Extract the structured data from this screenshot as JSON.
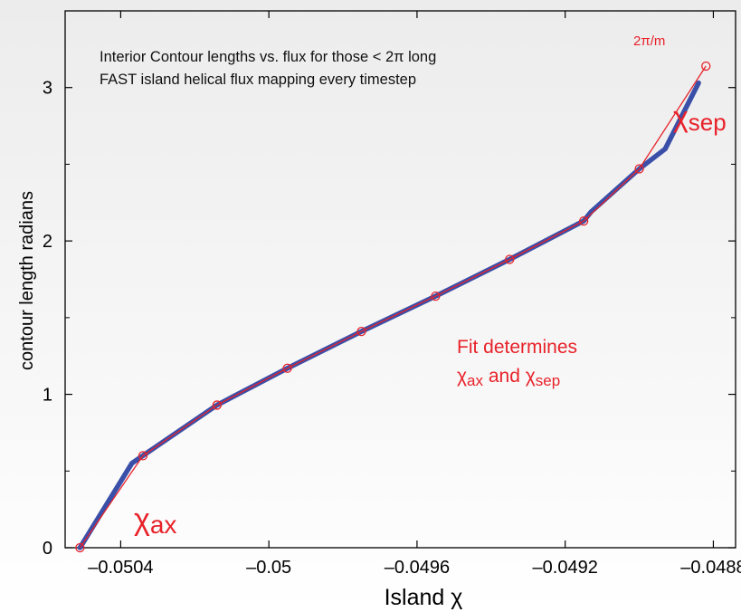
{
  "chart_data": {
    "type": "line",
    "xlabel": "Island χ",
    "ylabel": "contour length radians",
    "xlim": [
      -0.05055,
      -0.04874
    ],
    "ylim": [
      0,
      3.5
    ],
    "x_ticks": [
      -0.0504,
      -0.05,
      -0.0496,
      -0.0492,
      -0.0488
    ],
    "x_tick_labels": [
      "–0.0504",
      "–0.05",
      "–0.0496",
      "–0.0492",
      "–0.0488"
    ],
    "y_ticks": [
      0,
      1,
      2,
      3
    ],
    "y_tick_labels": [
      "0",
      "1",
      "2",
      "3"
    ],
    "y_minor_ticks": [
      0.5,
      1.5,
      2.5
    ],
    "grid": false,
    "series": [
      {
        "style": "thick-line",
        "color": "#3a4fa8",
        "x": [
          -0.05051,
          -0.05037,
          -0.05034,
          -0.05014,
          -0.04995,
          -0.04975,
          -0.04955,
          -0.04935,
          -0.04915,
          -0.04913,
          -0.049,
          -0.04893,
          -0.04884
        ],
        "y": [
          0,
          0.55,
          0.6,
          0.93,
          1.17,
          1.41,
          1.64,
          1.88,
          2.13,
          2.19,
          2.47,
          2.6,
          3.03
        ]
      },
      {
        "style": "thin-line-circles",
        "color": "#e8222a",
        "x": [
          -0.05051,
          -0.05034,
          -0.05014,
          -0.04995,
          -0.04975,
          -0.04955,
          -0.04935,
          -0.04915,
          -0.049,
          -0.04882
        ],
        "y": [
          0,
          0.6,
          0.93,
          1.17,
          1.41,
          1.64,
          1.88,
          2.13,
          2.47,
          3.14
        ]
      }
    ],
    "annotations": {
      "header_line1": "Interior Contour lengths vs. flux for those < 2π long",
      "header_line2": "FAST island helical flux mapping every timestep",
      "end_point_label": "2π/m",
      "axis_symbol": "χ",
      "axis_subscript": "ax",
      "sep_symbol": "χ",
      "sep_subscript": "sep",
      "fit_line1": "Fit determines",
      "fit_chi": "χ",
      "fit_ax_sub": "ax",
      "fit_and": " and ",
      "fit_sep_sub": "sep"
    },
    "colors": {
      "accent": "#e8222a",
      "curve": "#3a4fa8",
      "axis": "#000000"
    }
  }
}
